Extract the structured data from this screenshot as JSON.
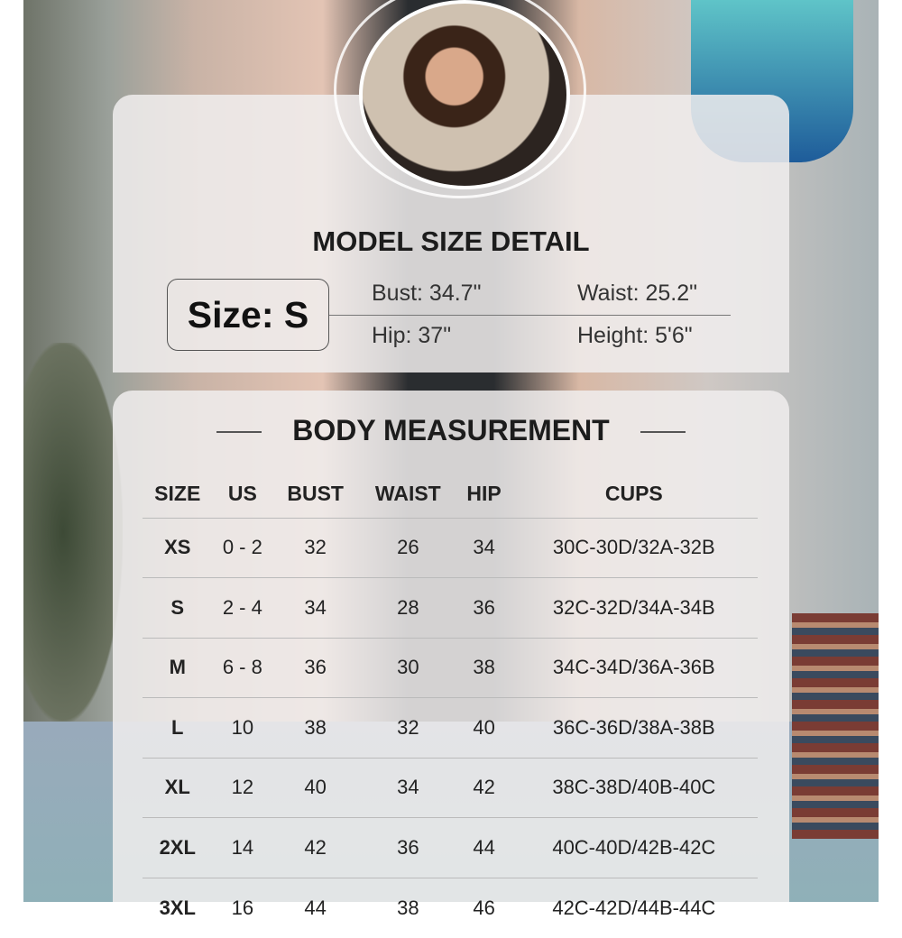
{
  "model": {
    "title": "MODEL SIZE DETAIL",
    "size": "Size: S",
    "bust": "Bust: 34.7\"",
    "waist": "Waist: 25.2\"",
    "hip": "Hip: 37\"",
    "height": "Height: 5'6\""
  },
  "body": {
    "title": "BODY MEASUREMENT",
    "headers": [
      "SIZE",
      "US",
      "BUST",
      "WAIST",
      "HIP",
      "CUPS"
    ],
    "rows": [
      [
        "XS",
        "0 - 2",
        "32",
        "26",
        "34",
        "30C-30D/32A-32B"
      ],
      [
        "S",
        "2 - 4",
        "34",
        "28",
        "36",
        "32C-32D/34A-34B"
      ],
      [
        "M",
        "6 - 8",
        "36",
        "30",
        "38",
        "34C-34D/36A-36B"
      ],
      [
        "L",
        "10",
        "38",
        "32",
        "40",
        "36C-36D/38A-38B"
      ],
      [
        "XL",
        "12",
        "40",
        "34",
        "42",
        "38C-38D/40B-40C"
      ],
      [
        "2XL",
        "14",
        "42",
        "36",
        "44",
        "40C-40D/42B-42C"
      ],
      [
        "3XL",
        "16",
        "44",
        "38",
        "46",
        "42C-42D/44B-44C"
      ]
    ]
  }
}
